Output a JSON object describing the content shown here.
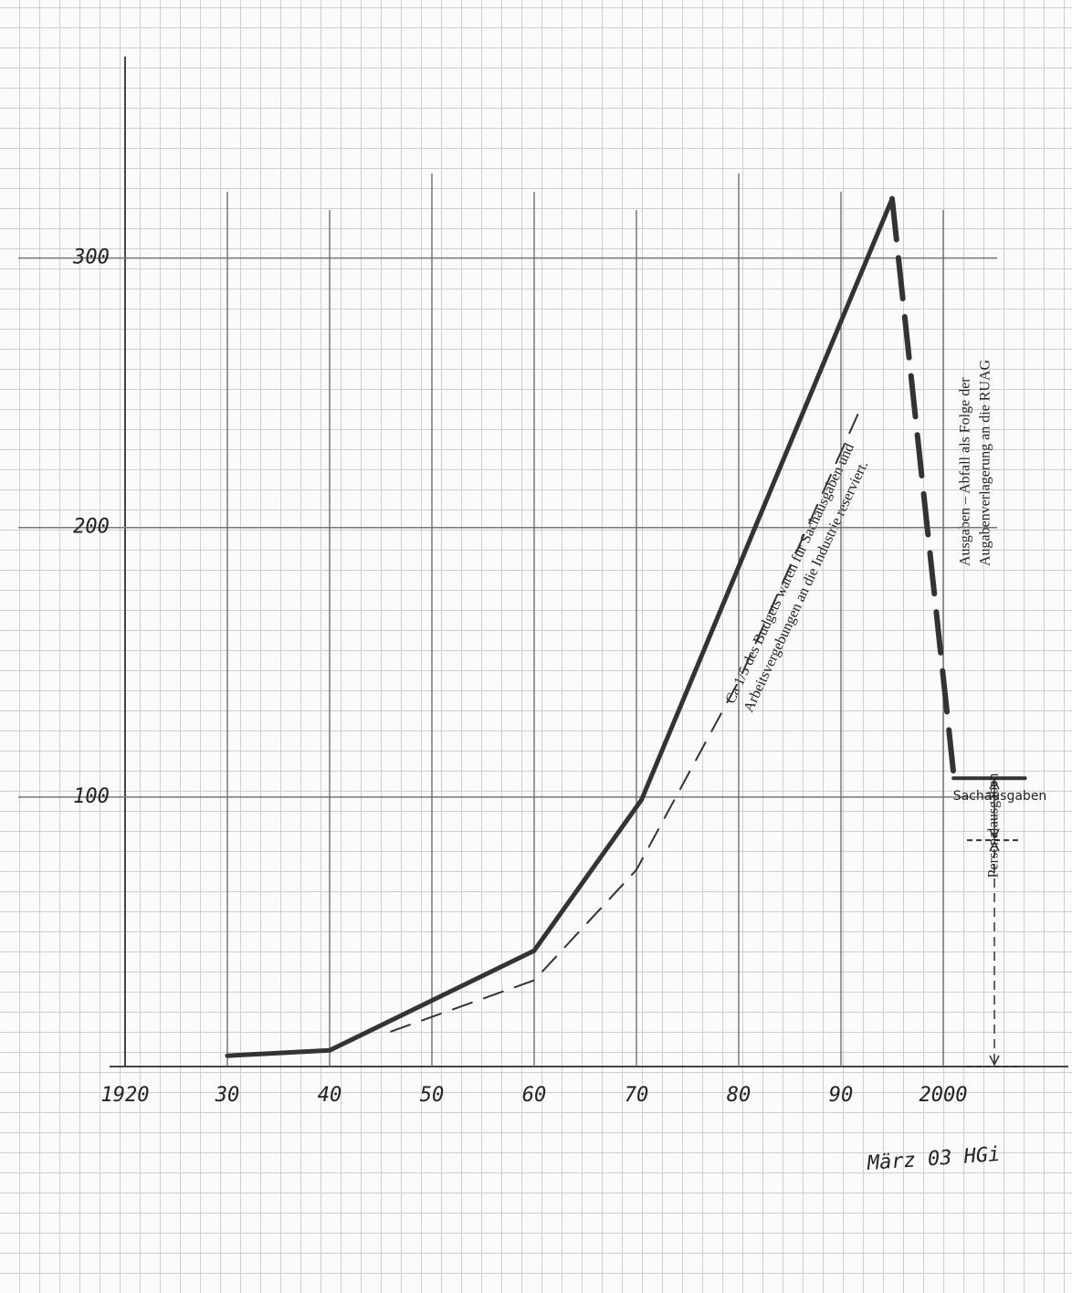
{
  "chart_data": {
    "type": "line",
    "xlim": [
      1920,
      2010
    ],
    "ylim": [
      0,
      370
    ],
    "xticks": [
      1920,
      {
        "value": 1930,
        "label": "30"
      },
      {
        "value": 1940,
        "label": "40"
      },
      {
        "value": 1950,
        "label": "50"
      },
      {
        "value": 1960,
        "label": "60"
      },
      {
        "value": 1970,
        "label": "70"
      },
      {
        "value": 1980,
        "label": "80"
      },
      {
        "value": 1990,
        "label": "90"
      },
      2000
    ],
    "yticks": [
      100,
      200,
      300
    ],
    "grid": true,
    "series": [
      {
        "color": "#333333",
        "style": "solid",
        "width": 5,
        "x": [
          1930,
          1940,
          1960,
          1970.5,
          1995
        ],
        "values": [
          4,
          6,
          43,
          99,
          322
        ]
      },
      {
        "color": "#333333",
        "style": "dashed-bold",
        "width": 6,
        "x": [
          1995,
          2001
        ],
        "values": [
          322,
          109
        ]
      },
      {
        "color": "#333333",
        "style": "solid",
        "width": 4,
        "x": [
          2001,
          2008
        ],
        "values": [
          107,
          107
        ]
      },
      {
        "color": "#333333",
        "style": "dashed",
        "width": 2,
        "x": [
          1946,
          1960,
          1970,
          1980,
          1992
        ],
        "values": [
          13,
          32,
          73,
          143,
          245
        ]
      }
    ],
    "annotations": [
      {
        "lines": [
          "Ca 1/5 des Budgets waren für Sachausgaben und",
          "Arbeitsvergebungen an die Industrie reserviert."
        ]
      },
      {
        "lines": [
          "Ausgaben – Abfall als Folge der",
          "Augabenverlagerung an die RUAG"
        ]
      }
    ],
    "brackets": [
      {
        "label": "Sachausgaben",
        "x": 2005,
        "from": 84,
        "to": 107
      },
      {
        "label": "Personalausgaben",
        "x": 2005,
        "from": 0,
        "to": 84
      }
    ],
    "signature": "März 03 HGi"
  }
}
